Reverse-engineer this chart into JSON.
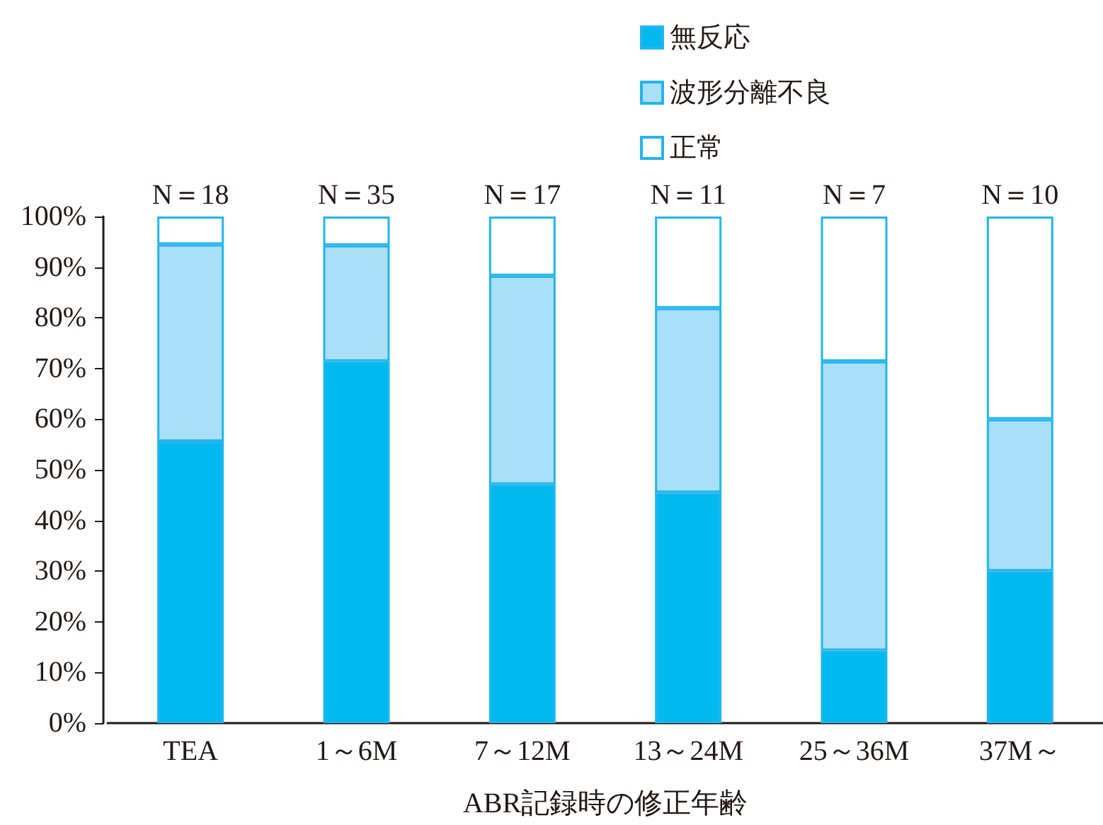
{
  "chart_data": {
    "type": "bar",
    "stacked": true,
    "xlabel": "ABR記録時の修正年齢",
    "categories": [
      "TEA",
      "1～6M",
      "7～12M",
      "13～24M",
      "25～36M",
      "37M～"
    ],
    "series": [
      {
        "name": "無反応",
        "color": "#00b9ef",
        "values": [
          55.6,
          71.4,
          47.1,
          45.5,
          14.3,
          30
        ]
      },
      {
        "name": "波形分離不良",
        "color": "#aadff8",
        "values": [
          38.9,
          22.9,
          41.2,
          36.4,
          57.1,
          30
        ]
      },
      {
        "name": "正常",
        "color": "#ffffff",
        "values": [
          5.5,
          5.7,
          11.7,
          18.1,
          28.6,
          40
        ]
      }
    ],
    "ylim": [
      0,
      100
    ],
    "yticks": [
      {
        "value": 0,
        "label": "0%"
      },
      {
        "value": 10,
        "label": "10%"
      },
      {
        "value": 20,
        "label": "20%"
      },
      {
        "value": 30,
        "label": "30%"
      },
      {
        "value": 40,
        "label": "40%"
      },
      {
        "value": 50,
        "label": "50%"
      },
      {
        "value": 60,
        "label": "60%"
      },
      {
        "value": 70,
        "label": "70%"
      },
      {
        "value": 80,
        "label": "80%"
      },
      {
        "value": 90,
        "label": "90%"
      },
      {
        "value": 100,
        "label": "100%"
      }
    ],
    "annotations": [
      {
        "text": "N＝18",
        "x": "TEA",
        "y": 100
      },
      {
        "text": "N＝35",
        "x": "1～6M",
        "y": 100
      },
      {
        "text": "N＝17",
        "x": "7～12M",
        "y": 100
      },
      {
        "text": "N＝11",
        "x": "13～24M",
        "y": 100
      },
      {
        "text": "N＝7",
        "x": "25～36M",
        "y": 100
      },
      {
        "text": "N＝10",
        "x": "37M～",
        "y": 100
      }
    ],
    "legend": "top right"
  }
}
